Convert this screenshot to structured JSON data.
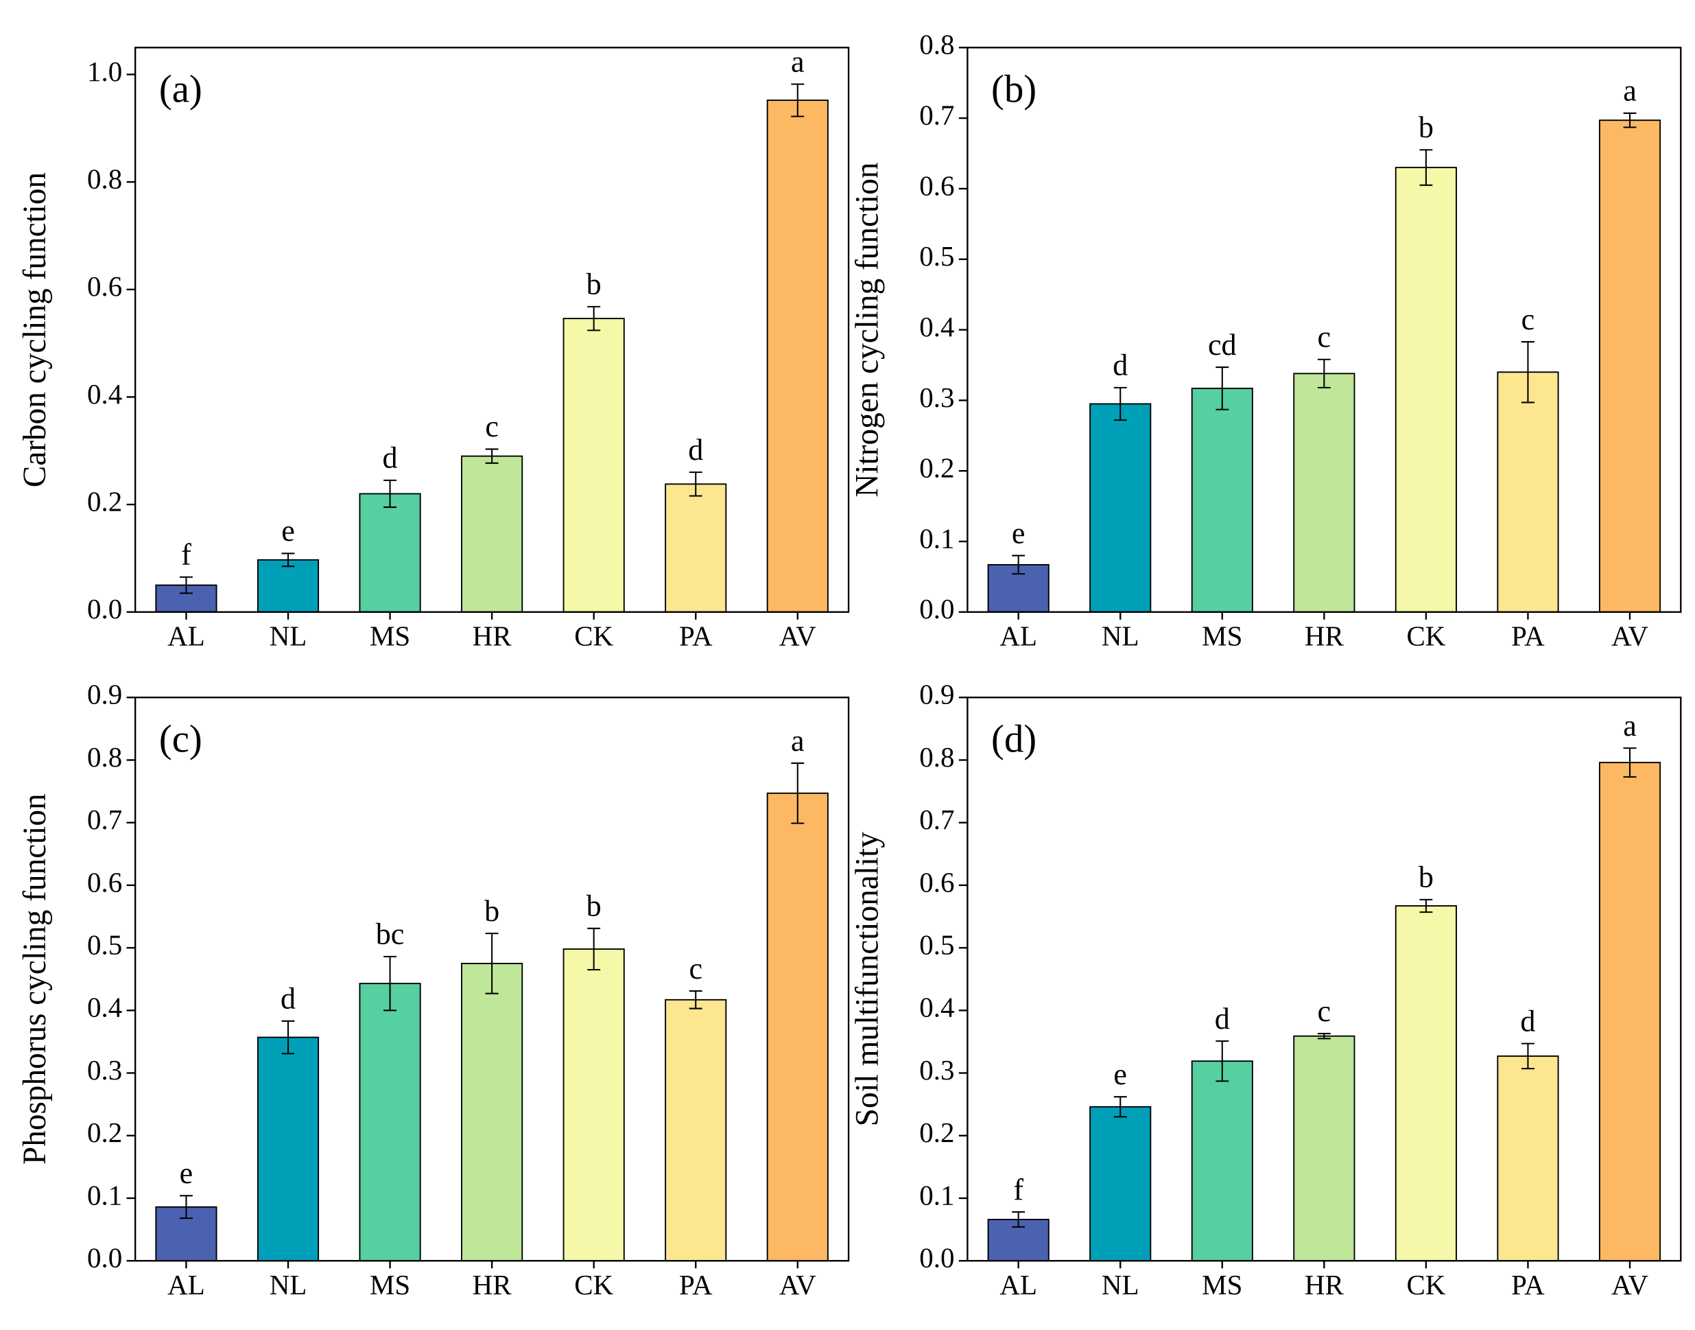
{
  "chart_data": [
    {
      "type": "bar",
      "panel_label": "(a)",
      "ylabel": "Carbon cycling function",
      "categories": [
        "AL",
        "NL",
        "MS",
        "HR",
        "CK",
        "PA",
        "AV"
      ],
      "values": [
        0.05,
        0.097,
        0.22,
        0.29,
        0.546,
        0.238,
        0.952
      ],
      "errors": [
        0.015,
        0.012,
        0.025,
        0.013,
        0.022,
        0.022,
        0.03
      ],
      "annotations": [
        "f",
        "e",
        "d",
        "c",
        "b",
        "d",
        "a"
      ],
      "colors": [
        "#4a62b0",
        "#00a0b8",
        "#56d0a0",
        "#c0e69a",
        "#f4f8a8",
        "#fde690",
        "#fdb863"
      ],
      "ylim": [
        0,
        1.05
      ],
      "yticks": [
        {
          "value": 0,
          "label": "0.0"
        },
        0.2,
        0.4,
        0.6,
        0.8,
        {
          "value": 1,
          "label": "1.0"
        }
      ]
    },
    {
      "type": "bar",
      "panel_label": "(b)",
      "ylabel": "Nitrogen cycling function",
      "categories": [
        "AL",
        "NL",
        "MS",
        "HR",
        "CK",
        "PA",
        "AV"
      ],
      "values": [
        0.067,
        0.295,
        0.317,
        0.338,
        0.63,
        0.34,
        0.697
      ],
      "errors": [
        0.013,
        0.023,
        0.03,
        0.02,
        0.025,
        0.043,
        0.01
      ],
      "annotations": [
        "e",
        "d",
        "cd",
        "c",
        "b",
        "c",
        "a"
      ],
      "colors": [
        "#4a62b0",
        "#00a0b8",
        "#56d0a0",
        "#c0e69a",
        "#f4f8a8",
        "#fde690",
        "#fdb863"
      ],
      "ylim": [
        0,
        0.8
      ],
      "yticks": [
        {
          "value": 0,
          "label": "0.0"
        },
        0.1,
        0.2,
        0.3,
        0.4,
        0.5,
        0.6,
        0.7,
        0.8
      ]
    },
    {
      "type": "bar",
      "panel_label": "(c)",
      "ylabel": "Phosphorus cycling function",
      "categories": [
        "AL",
        "NL",
        "MS",
        "HR",
        "CK",
        "PA",
        "AV"
      ],
      "values": [
        0.086,
        0.357,
        0.443,
        0.475,
        0.498,
        0.417,
        0.747
      ],
      "errors": [
        0.018,
        0.026,
        0.043,
        0.048,
        0.033,
        0.014,
        0.048
      ],
      "annotations": [
        "e",
        "d",
        "bc",
        "b",
        "b",
        "c",
        "a"
      ],
      "colors": [
        "#4a62b0",
        "#00a0b8",
        "#56d0a0",
        "#c0e69a",
        "#f4f8a8",
        "#fde690",
        "#fdb863"
      ],
      "ylim": [
        0,
        0.9
      ],
      "yticks": [
        {
          "value": 0,
          "label": "0.0"
        },
        0.1,
        0.2,
        0.3,
        0.4,
        0.5,
        0.6,
        0.7,
        0.8,
        0.9
      ]
    },
    {
      "type": "bar",
      "panel_label": "(d)",
      "ylabel": "Soil multifunctionality",
      "categories": [
        "AL",
        "NL",
        "MS",
        "HR",
        "CK",
        "PA",
        "AV"
      ],
      "values": [
        0.066,
        0.246,
        0.319,
        0.359,
        0.567,
        0.327,
        0.796
      ],
      "errors": [
        0.012,
        0.016,
        0.032,
        0.004,
        0.01,
        0.02,
        0.023
      ],
      "annotations": [
        "f",
        "e",
        "d",
        "c",
        "b",
        "d",
        "a"
      ],
      "colors": [
        "#4a62b0",
        "#00a0b8",
        "#56d0a0",
        "#c0e69a",
        "#f4f8a8",
        "#fde690",
        "#fdb863"
      ],
      "ylim": [
        0,
        0.9
      ],
      "yticks": [
        {
          "value": 0,
          "label": "0.0"
        },
        0.1,
        0.2,
        0.3,
        0.4,
        0.5,
        0.6,
        0.7,
        0.8,
        0.9
      ]
    }
  ]
}
